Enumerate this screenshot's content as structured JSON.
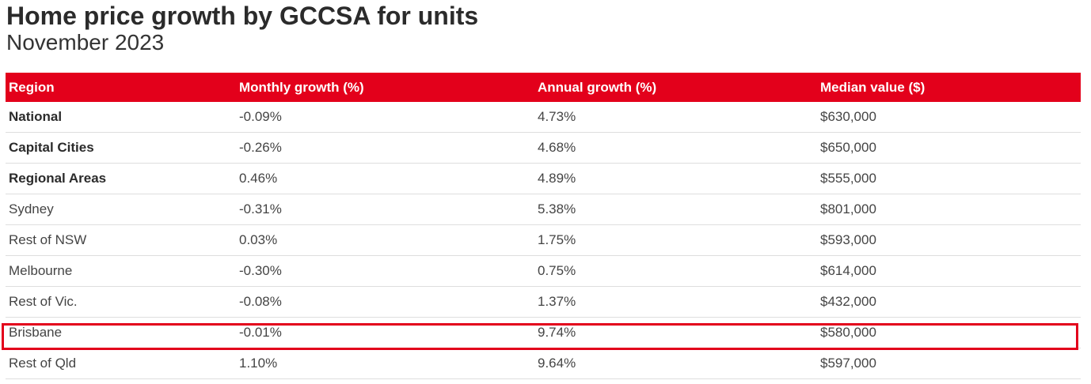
{
  "title": "Home price growth by GCCSA for units",
  "subtitle": "November 2023",
  "colors": {
    "header_bg": "#e3001b",
    "highlight_border": "#e3001b"
  },
  "table": {
    "headers": [
      "Region",
      "Monthly growth (%)",
      "Annual growth (%)",
      "Median value ($)"
    ],
    "rows": [
      {
        "region": "National",
        "monthly": "-0.09%",
        "annual": "4.73%",
        "median": "$630,000",
        "bold": true
      },
      {
        "region": "Capital Cities",
        "monthly": "-0.26%",
        "annual": "4.68%",
        "median": "$650,000",
        "bold": true
      },
      {
        "region": "Regional Areas",
        "monthly": "0.46%",
        "annual": "4.89%",
        "median": "$555,000",
        "bold": true
      },
      {
        "region": "Sydney",
        "monthly": "-0.31%",
        "annual": "5.38%",
        "median": "$801,000",
        "bold": false
      },
      {
        "region": "Rest of NSW",
        "monthly": "0.03%",
        "annual": "1.75%",
        "median": "$593,000",
        "bold": false
      },
      {
        "region": "Melbourne",
        "monthly": "-0.30%",
        "annual": "0.75%",
        "median": "$614,000",
        "bold": false
      },
      {
        "region": "Rest of Vic.",
        "monthly": "-0.08%",
        "annual": "1.37%",
        "median": "$432,000",
        "bold": false
      },
      {
        "region": "Brisbane",
        "monthly": "-0.01%",
        "annual": "9.74%",
        "median": "$580,000",
        "bold": false,
        "highlighted": true
      },
      {
        "region": "Rest of Qld",
        "monthly": "1.10%",
        "annual": "9.64%",
        "median": "$597,000",
        "bold": false
      }
    ]
  }
}
